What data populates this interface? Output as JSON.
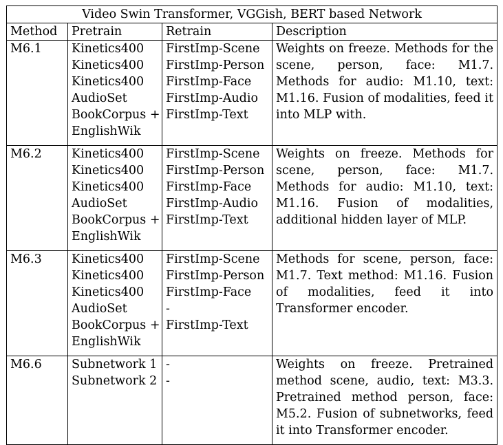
{
  "table": {
    "title": "Video Swin Transformer, VGGish, BERT based Network",
    "headers": {
      "method": "Method",
      "pretrain": "Pretrain",
      "retrain": "Retrain",
      "description": "Description"
    },
    "rows": [
      {
        "method": "M6.1",
        "pretrain": [
          "Kinetics400",
          "Kinetics400",
          "Kinetics400",
          "AudioSet",
          "BookCorpus +",
          "EnglishWik"
        ],
        "retrain": [
          "FirstImp-Scene",
          "FirstImp-Person",
          "FirstImp-Face",
          "FirstImp-Audio",
          "FirstImp-Text"
        ],
        "description": "Weights on freeze. Methods for the scene, person, face: M1.7. Methods for audio: M1.10, text: M1.16. Fusion of modalities, feed it into MLP with."
      },
      {
        "method": "M6.2",
        "pretrain": [
          "Kinetics400",
          "Kinetics400",
          "Kinetics400",
          "AudioSet",
          "BookCorpus +",
          "EnglishWik"
        ],
        "retrain": [
          "FirstImp-Scene",
          "FirstImp-Person",
          "FirstImp-Face",
          "FirstImp-Audio",
          "FirstImp-Text"
        ],
        "description": "Weights on freeze. Methods for scene, person, face: M1.7. Methods for audio: M1.10, text: M1.16. Fusion of modalities, additional hidden layer of MLP."
      },
      {
        "method": "M6.3",
        "pretrain": [
          "Kinetics400",
          "Kinetics400",
          "Kinetics400",
          "AudioSet",
          "BookCorpus +",
          "EnglishWik"
        ],
        "retrain": [
          "FirstImp-Scene",
          "FirstImp-Person",
          "FirstImp-Face",
          "-",
          "FirstImp-Text"
        ],
        "description": "Methods for scene, person, face: M1.7. Text method: M1.16. Fusion of modalities, feed it into Transformer encoder."
      },
      {
        "method": "M6.6",
        "pretrain": [
          "Subnetwork 1",
          "Subnetwork 2"
        ],
        "retrain": [
          "-",
          "-"
        ],
        "description": "Weights on freeze. Pretrained method scene, audio, text: M3.3. Pretrained method person, face: M5.2. Fusion of subnetworks, feed it into Transformer encoder."
      }
    ]
  }
}
